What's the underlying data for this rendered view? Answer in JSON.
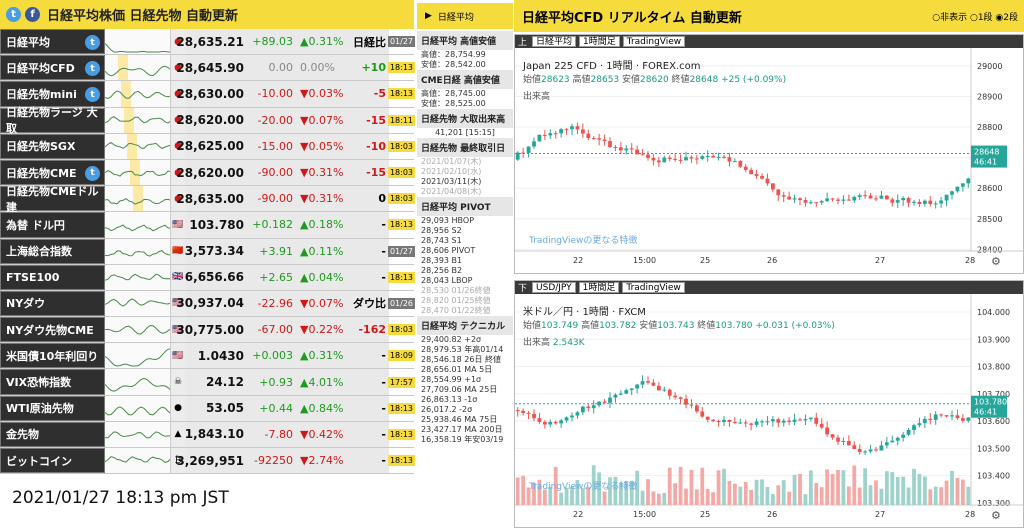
{
  "header": {
    "title": "日経平均株価 日経先物 自動更新",
    "nav_label": "日経平均"
  },
  "rows": [
    {
      "name": "日経平均",
      "twitter": true,
      "flag": "",
      "value": "28,635.21",
      "change": "+89.03",
      "pct": "▲0.31%",
      "nk": "日経比",
      "time": "01/27",
      "cc": "up",
      "pc": "up",
      "tg": true
    },
    {
      "name": "日経平均CFD",
      "twitter": true,
      "flag": "",
      "value": "28,645.90",
      "change": "0.00",
      "pct": "0.00%",
      "nk": "+10",
      "time": "18:13",
      "cc": "zero",
      "pc": "zero",
      "tg": false
    },
    {
      "name": "日経先物mini",
      "twitter": true,
      "flag": "",
      "value": "28,630.00",
      "change": "-10.00",
      "pct": "▼0.03%",
      "nk": "-5",
      "time": "18:13",
      "cc": "dn",
      "pc": "dn",
      "tg": false
    },
    {
      "name": "日経先物ラージ 大取",
      "twitter": false,
      "flag": "",
      "value": "28,620.00",
      "change": "-20.00",
      "pct": "▼0.07%",
      "nk": "-15",
      "time": "18:11",
      "cc": "dn",
      "pc": "dn",
      "tg": false
    },
    {
      "name": "日経先物SGX",
      "twitter": false,
      "flag": "",
      "value": "28,625.00",
      "change": "-15.00",
      "pct": "▼0.05%",
      "nk": "-10",
      "time": "18:03",
      "cc": "dn",
      "pc": "dn",
      "tg": false
    },
    {
      "name": "日経先物CME",
      "twitter": true,
      "flag": "",
      "value": "28,620.00",
      "change": "-90.00",
      "pct": "▼0.31%",
      "nk": "-15",
      "time": "18:03",
      "cc": "dn",
      "pc": "dn",
      "tg": false
    },
    {
      "name": "日経先物CMEドル建",
      "twitter": false,
      "flag": "",
      "value": "28,635.00",
      "change": "-90.00",
      "pct": "▼0.31%",
      "nk": "0",
      "time": "18:03",
      "cc": "dn",
      "pc": "dn",
      "tg": false
    },
    {
      "name": "為替 ドル円",
      "twitter": false,
      "flag": "us",
      "value": "103.780",
      "change": "+0.182",
      "pct": "▲0.18%",
      "nk": "-",
      "time": "18:13",
      "cc": "up",
      "pc": "up",
      "tg": false
    },
    {
      "name": "上海総合指数",
      "twitter": false,
      "flag": "cn",
      "value": "3,573.34",
      "change": "+3.91",
      "pct": "▲0.11%",
      "nk": "-",
      "time": "01/27",
      "cc": "up",
      "pc": "up",
      "tg": true
    },
    {
      "name": "FTSE100",
      "twitter": false,
      "flag": "uk",
      "value": "6,656.66",
      "change": "+2.65",
      "pct": "▲0.04%",
      "nk": "-",
      "time": "18:13",
      "cc": "up",
      "pc": "up",
      "tg": false
    },
    {
      "name": "NYダウ",
      "twitter": false,
      "flag": "us",
      "value": "30,937.04",
      "change": "-22.96",
      "pct": "▼0.07%",
      "nk": "ダウ比",
      "time": "01/26",
      "cc": "dn",
      "pc": "dn",
      "tg": true
    },
    {
      "name": "NYダウ先物CME",
      "twitter": false,
      "flag": "us",
      "value": "30,775.00",
      "change": "-67.00",
      "pct": "▼0.22%",
      "nk": "-162",
      "time": "18:03",
      "cc": "dn",
      "pc": "dn",
      "tg": false
    },
    {
      "name": "米国債10年利回り",
      "twitter": false,
      "flag": "us",
      "value": "1.0430",
      "change": "+0.003",
      "pct": "▲0.31%",
      "nk": "-",
      "time": "18:09",
      "cc": "up",
      "pc": "up",
      "tg": false
    },
    {
      "name": "VIX恐怖指数",
      "twitter": false,
      "flag": "vix",
      "value": "24.12",
      "change": "+0.93",
      "pct": "▲4.01%",
      "nk": "-",
      "time": "17:57",
      "cc": "up",
      "pc": "up",
      "tg": false
    },
    {
      "name": "WTI原油先物",
      "twitter": false,
      "flag": "oil",
      "value": "53.05",
      "change": "+0.44",
      "pct": "▲0.84%",
      "nk": "-",
      "time": "18:13",
      "cc": "up",
      "pc": "up",
      "tg": false
    },
    {
      "name": "金先物",
      "twitter": false,
      "flag": "gold",
      "value": "1,843.10",
      "change": "-7.80",
      "pct": "▼0.42%",
      "nk": "-",
      "time": "18:13",
      "cc": "dn",
      "pc": "dn",
      "tg": false
    },
    {
      "name": "ビットコイン",
      "twitter": false,
      "flag": "btc",
      "value": "3,269,951",
      "change": "-92250",
      "pct": "▼2.74%",
      "nk": "-",
      "time": "18:13",
      "cc": "dn",
      "pc": "dn",
      "tg": false
    }
  ],
  "side": {
    "s1": {
      "title": "日経平均 高値安値",
      "l1": "高値：28,754.99",
      "l2": "安値：28,542.00"
    },
    "s2": {
      "title": "CME日経 高値安値",
      "l1": "高値：28,745.00",
      "l2": "安値：28,525.00"
    },
    "s3": {
      "title": "日経先物 大取出来高",
      "l1": "41,201 [15:15]"
    },
    "s4": {
      "title": "日経先物 最終取引日",
      "d1": "2021/01/07(木)",
      "d2": "2021/02/10(水)",
      "d3": "2021/03/11(木)",
      "d4": "2021/04/08(木)"
    },
    "s5": {
      "title": "日経平均 PIVOT",
      "lines": [
        "29,093 HBOP",
        "28,956 S2",
        "28,743 S1",
        "28,606 PIVOT",
        "28,393 B1",
        "28,256 B2",
        "28,043 LBOP",
        "28,530 01/26終値",
        "28,820 01/25終値",
        "28,470 01/22終値"
      ]
    },
    "s6": {
      "title": "日経平均 テクニカル",
      "lines": [
        "29,400.82 +2σ",
        "28,979.53 年高01/14",
        "28,546.18 26日 終値",
        "28,656.01 MA 5日",
        "28,554.99 +1σ",
        "27,709.06 MA 25日",
        "26,863.13 -1σ",
        "26,017.2 -2σ",
        "25,938.46 MA 75日",
        "23,427.17 MA 200日",
        "16,358.19 年安03/19"
      ]
    }
  },
  "footer": "2021/01/27 18:13 pm JST",
  "right": {
    "title": "日経平均CFD リアルタイム 自動更新",
    "radio": "○非表示 ○1段 ◉2段",
    "top": {
      "pos": "上",
      "symbol": "日経平均",
      "interval": "1時間足",
      "source": "TradingView",
      "name": "Japan 225 CFD · 1時間 · FOREX.com",
      "o": "28623",
      "h": "28653",
      "l": "28620",
      "c": "28648",
      "chg": "+25 (+0.09%)",
      "vol": "出来高",
      "price": "28648",
      "timer": "46:41",
      "link": "TradingViewの更なる特徴",
      "yticks": [
        "29000",
        "28900",
        "28800",
        "28700",
        "28600",
        "28500",
        "28400"
      ],
      "xticks": [
        "22",
        "15:00",
        "25",
        "26",
        "27",
        "28"
      ]
    },
    "bottom": {
      "pos": "下",
      "symbol": "USD/JPY",
      "interval": "1時間足",
      "source": "TradingView",
      "name": "米ドル／円 · 1時間 · FXCM",
      "o": "103.749",
      "h": "103.782",
      "l": "103.743",
      "c": "103.780",
      "chg": "+0.031 (+0.03%)",
      "vol": "出来高",
      "volval": "2.543K",
      "price": "103.780",
      "timer": "46:41",
      "link": "TradingViewの更なる特徴",
      "yticks": [
        "104.000",
        "103.900",
        "103.800",
        "103.700",
        "103.600",
        "103.500",
        "103.400",
        "103.300"
      ],
      "xticks": [
        "22",
        "15:00",
        "25",
        "26",
        "27",
        "28"
      ]
    }
  },
  "colors": {
    "accent": "#f5dc3c",
    "up": "#26a69a",
    "down": "#ef5350"
  }
}
